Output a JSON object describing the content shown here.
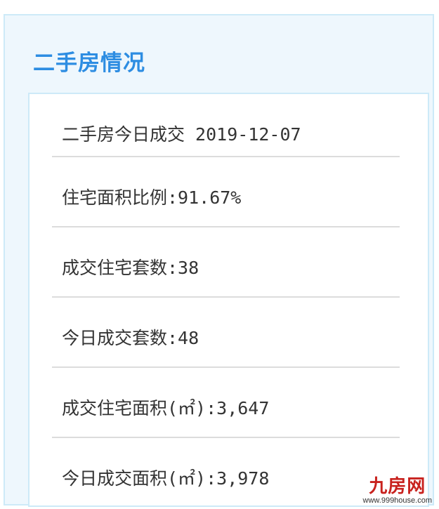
{
  "title": "二手房情况",
  "rows": [
    {
      "label": "二手房今日成交 2019-12-07"
    },
    {
      "label": "住宅面积比例:91.67%"
    },
    {
      "label": "成交住宅套数:38"
    },
    {
      "label": "今日成交套数:48"
    },
    {
      "label": "成交住宅面积(㎡):3,647"
    },
    {
      "label": "今日成交面积(㎡):3,978"
    }
  ],
  "watermark": {
    "logo_text": "九房网",
    "url": "www.999house.com"
  },
  "colors": {
    "title": "#2d8de2",
    "panel_bg": "#eef7fd",
    "border": "#cdeaf8",
    "logo": "#c8221e"
  }
}
